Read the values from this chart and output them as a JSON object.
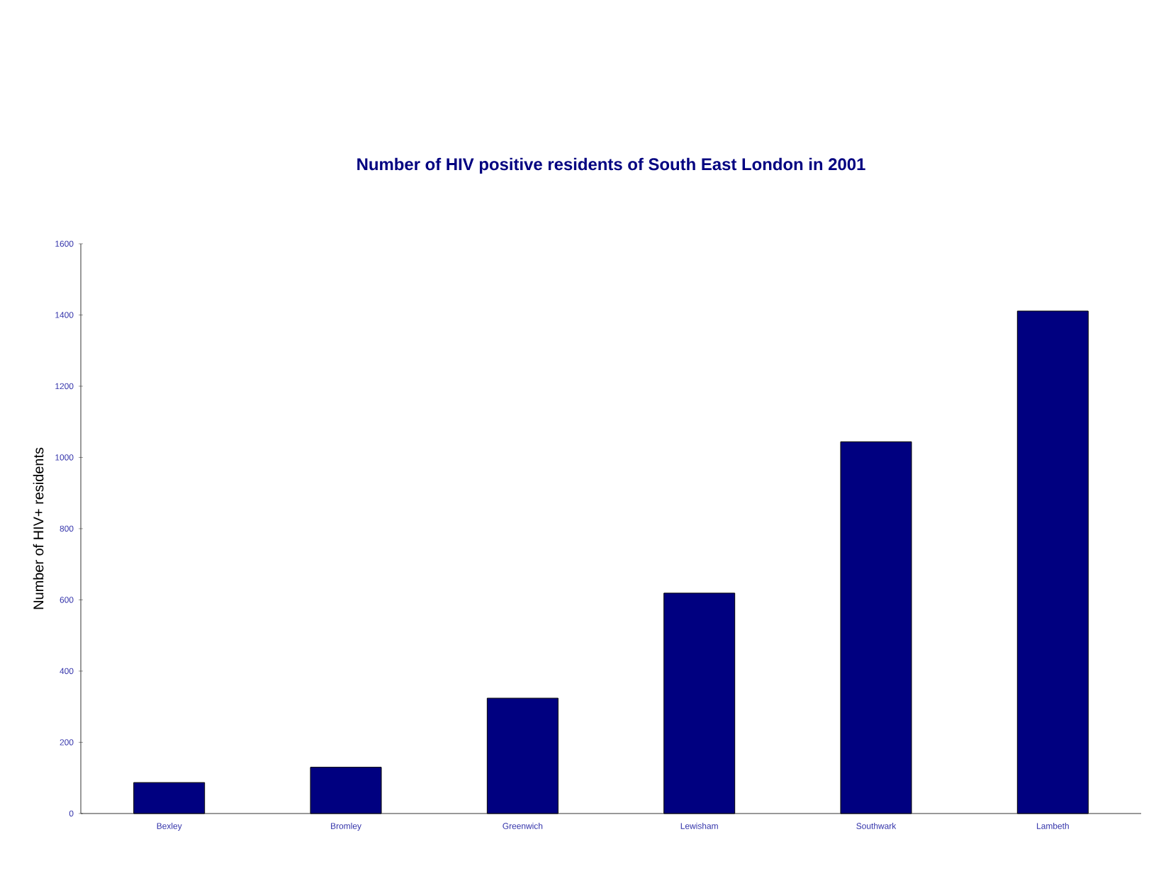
{
  "chart_data": {
    "type": "bar",
    "title": "Number of HIV positive residents of South East London in 2001",
    "ylabel": "Number of HIV+ residents",
    "categories": [
      "Bexley",
      "Bromley",
      "Greenwich",
      "Lewisham",
      "Southwark",
      "Lambeth"
    ],
    "values": [
      87,
      130,
      324,
      619,
      1044,
      1411
    ],
    "color": "#000080",
    "ylim": [
      0,
      1600
    ],
    "yticks": [
      0,
      200,
      400,
      600,
      800,
      1000,
      1200,
      1400,
      1600
    ],
    "grid": false
  }
}
